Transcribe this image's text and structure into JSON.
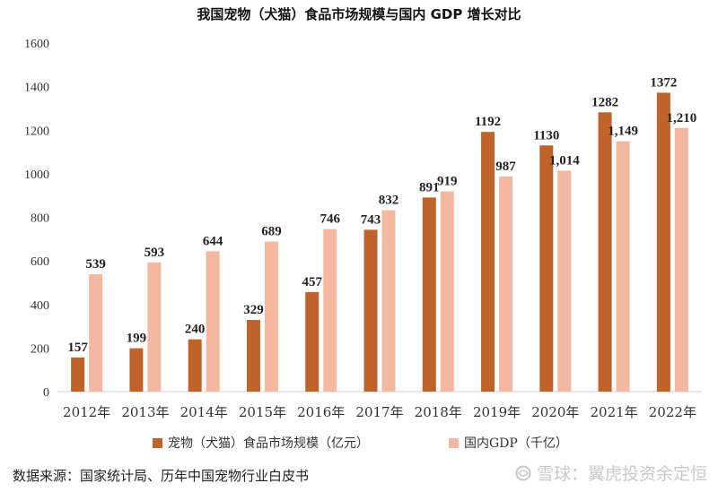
{
  "chart_data": {
    "type": "bar",
    "title": "我国宠物（犬猫）食品市场规模与国内 GDP 增长对比",
    "categories": [
      "2012年",
      "2013年",
      "2014年",
      "2015年",
      "2016年",
      "2017年",
      "2018年",
      "2019年",
      "2020年",
      "2021年",
      "2022年"
    ],
    "series": [
      {
        "name": "宠物（犬猫）食品市场规模（亿元）",
        "color": "#c0632b",
        "values": [
          157,
          199,
          240,
          329,
          457,
          743,
          891,
          1192,
          1130,
          1282,
          1372
        ],
        "labels": [
          "157",
          "199",
          "240",
          "329",
          "457",
          "743",
          "891",
          "1192",
          "1130",
          "1282",
          "1372"
        ]
      },
      {
        "name": "国内GDP（千亿）",
        "color": "#f4b8a1",
        "values": [
          539,
          593,
          644,
          689,
          746,
          832,
          919,
          987,
          1014,
          1149,
          1210
        ],
        "labels": [
          "539",
          "593",
          "644",
          "689",
          "746",
          "832",
          "919",
          "987",
          "1,014",
          "1,149",
          "1,210"
        ]
      }
    ],
    "ylim": [
      0,
      1600
    ],
    "yticks": [
      "0",
      "200",
      "400",
      "600",
      "800",
      "1000",
      "1200",
      "1400",
      "1600"
    ],
    "xlabel": "",
    "ylabel": "",
    "legend": "bottom",
    "grid": false
  },
  "footer": {
    "source": "数据来源：国家统计局、历年中国宠物行业白皮书",
    "watermark": "雪球：翼虎投资余定恒"
  }
}
